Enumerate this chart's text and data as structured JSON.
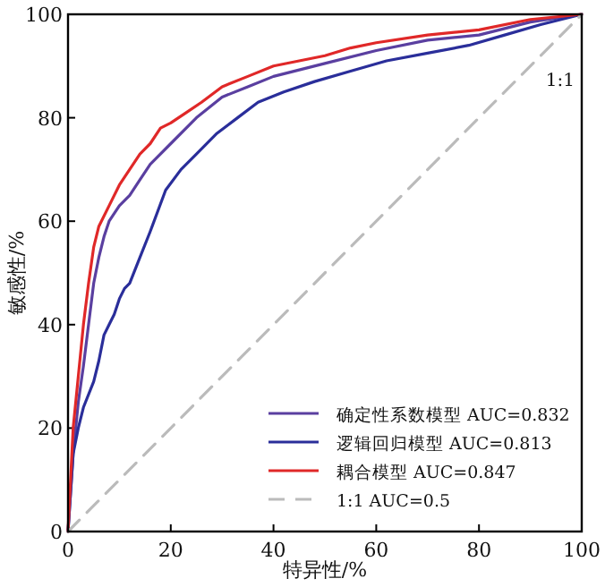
{
  "chart_data": {
    "type": "line",
    "xlabel": "特异性/%",
    "ylabel": "敏感性/%",
    "xlim": [
      0,
      100
    ],
    "ylim": [
      0,
      100
    ],
    "xticks": [
      0,
      20,
      40,
      60,
      80,
      100
    ],
    "yticks": [
      0,
      20,
      40,
      60,
      80,
      100
    ],
    "grid": false,
    "legend": "bottom right",
    "marker": "none",
    "annotations": [
      "1:1"
    ],
    "series": [
      {
        "name": "确定性系数模型   AUC=0.832",
        "color": "#5a3fa0",
        "line_style": "solid",
        "x": [
          0,
          1,
          2,
          3,
          4,
          5,
          6,
          7,
          8,
          10,
          12,
          14,
          16,
          20,
          25,
          30,
          35,
          40,
          50,
          60,
          70,
          80,
          90,
          100
        ],
        "values": [
          0,
          15,
          25,
          32,
          40,
          48,
          53,
          57,
          60,
          63,
          65,
          68,
          71,
          75,
          80,
          84,
          86,
          88,
          90.5,
          93,
          95,
          96,
          98.5,
          100
        ]
      },
      {
        "name": "逻辑回归模型  AUC=0.813",
        "color": "#2a2e9a",
        "line_style": "solid",
        "x": [
          0,
          1,
          2,
          3,
          5,
          6,
          7,
          8,
          9,
          10,
          11,
          12,
          14,
          16,
          19,
          22,
          25,
          29,
          33,
          37,
          42,
          48,
          55,
          62,
          70,
          78,
          85,
          92,
          100
        ],
        "values": [
          0,
          15,
          20,
          24,
          29,
          33,
          38,
          40,
          42,
          45,
          47,
          48,
          53,
          58,
          66,
          70,
          73,
          77,
          80,
          83,
          85,
          87,
          89,
          91,
          92.5,
          94,
          96,
          98,
          100
        ]
      },
      {
        "name": "耦合模型  AUC=0.847",
        "color": "#e02828",
        "line_style": "solid",
        "x": [
          0,
          1,
          2,
          3,
          4,
          5,
          6,
          8,
          10,
          12,
          14,
          16,
          18,
          20,
          23,
          26,
          30,
          35,
          40,
          45,
          50,
          55,
          60,
          70,
          80,
          90,
          100
        ],
        "values": [
          0,
          20,
          30,
          40,
          48,
          55,
          59,
          63,
          67,
          70,
          73,
          75,
          78,
          79,
          81,
          83,
          86,
          88,
          90,
          91,
          92,
          93.5,
          94.5,
          96,
          97,
          99,
          100
        ]
      },
      {
        "name": "1:1  AUC=0.5",
        "color": "#bbbbbb",
        "line_style": "dashed",
        "x": [
          0,
          100
        ],
        "values": [
          0,
          100
        ]
      }
    ]
  }
}
